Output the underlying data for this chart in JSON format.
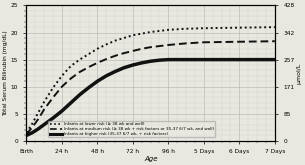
{
  "title": "",
  "ylabel_left": "Total Serum Bilirubin (mg/dL)",
  "ylabel_right": "μmol/L",
  "xlabel": "Age",
  "ylim_left": [
    0,
    25
  ],
  "ylim_right": [
    0,
    428
  ],
  "yticks_left": [
    0,
    5,
    10,
    15,
    20,
    25
  ],
  "yticks_right": [
    0,
    85,
    171,
    257,
    342,
    428
  ],
  "xtick_labels": [
    "Birth",
    "24 h",
    "48 h",
    "72 h",
    "96 h",
    "5 Days",
    "6 Days",
    "7 Days"
  ],
  "xtick_hours": [
    0,
    24,
    48,
    72,
    96,
    120,
    144,
    168
  ],
  "x_hours_max": 168,
  "lower_risk_x": [
    0,
    4,
    8,
    12,
    18,
    24,
    30,
    36,
    42,
    48,
    54,
    60,
    66,
    72,
    78,
    84,
    90,
    96,
    108,
    120,
    144,
    168
  ],
  "lower_risk_y": [
    1.5,
    3.2,
    5.2,
    7.2,
    9.8,
    12.0,
    13.8,
    15.0,
    16.0,
    17.0,
    17.8,
    18.5,
    19.0,
    19.5,
    19.8,
    20.1,
    20.3,
    20.5,
    20.7,
    20.8,
    20.9,
    21.0
  ],
  "medium_risk_x": [
    0,
    4,
    8,
    12,
    18,
    24,
    30,
    36,
    42,
    48,
    54,
    60,
    66,
    72,
    78,
    84,
    90,
    96,
    108,
    120,
    144,
    168
  ],
  "medium_risk_y": [
    1.2,
    2.5,
    4.0,
    5.8,
    8.0,
    10.0,
    11.5,
    12.7,
    13.6,
    14.4,
    15.1,
    15.7,
    16.2,
    16.6,
    17.0,
    17.3,
    17.5,
    17.7,
    18.0,
    18.2,
    18.3,
    18.4
  ],
  "higher_risk_x": [
    0,
    4,
    8,
    12,
    18,
    24,
    30,
    36,
    42,
    48,
    54,
    60,
    66,
    72,
    78,
    84,
    90,
    96,
    108,
    120,
    144,
    168
  ],
  "higher_risk_y": [
    1.0,
    1.5,
    2.2,
    3.0,
    4.2,
    5.5,
    7.0,
    8.5,
    9.8,
    11.0,
    12.0,
    12.8,
    13.5,
    14.0,
    14.4,
    14.7,
    14.9,
    15.0,
    15.0,
    15.0,
    15.0,
    15.0
  ],
  "legend_dotted_label": "Infants at lower risk (≥ 38 wk and well)",
  "legend_dashed_label": "Infants at medium risk (≥ 38 wk + risk factors or 35-37 6/7 wk, and well)",
  "legend_solid_label": "Infants at higher risk (35-37 6/7 wk, + risk factors)",
  "grid_major_color": "#bbbbbb",
  "grid_minor_color": "#cccccc",
  "bg_color": "#e8e8e0",
  "minor_grid_y_step": 1,
  "minor_grid_x_step": 6
}
